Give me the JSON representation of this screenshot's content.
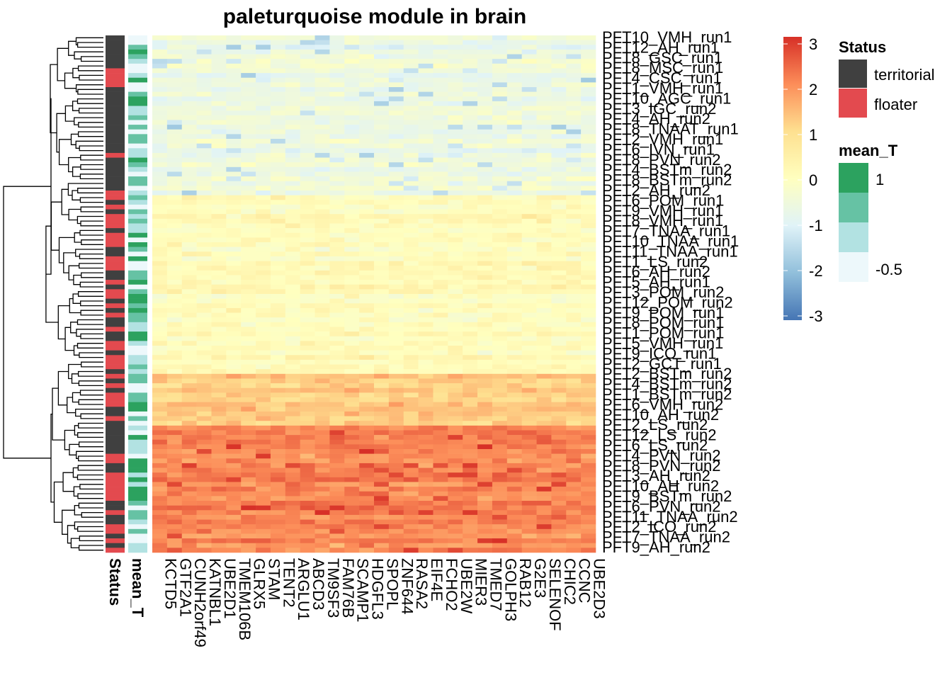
{
  "chart_data": {
    "type": "heatmap",
    "title": "paleturquoise module in brain",
    "columns": [
      "KCTD5",
      "GTF2A1",
      "CUNH2orf49",
      "KATNBL1",
      "UBE2D1",
      "TMEM106B",
      "GLRX5",
      "STAM",
      "TENT2",
      "ARGLU1",
      "ABCD3",
      "TM9SF3",
      "FAM76B",
      "SCAMP1",
      "HDGFL3",
      "SPOPL",
      "ZNF644",
      "RASA2",
      "EIF4E",
      "FCHO2",
      "UBE2W",
      "MIER3",
      "TMED7",
      "GOLPH3",
      "RAB12",
      "G2E3",
      "SELENOF",
      "CHIC2",
      "CCNC",
      "UBE2D3"
    ],
    "row_labels_visible": [
      "PFT10_VMH_run1",
      "PFT12_AH_run1",
      "PFT8_GSC_run1",
      "PFT8_MSC_run1",
      "PFT4_CSC_run1",
      "PFT1_VMH_run1",
      "PFT10_AGC_run1",
      "PFT3_IGC_run2",
      "PFT4_AH_run2",
      "PFT8_TNAAT_run1",
      "PFT2_VMH_run1",
      "PFT6_IVN_run1",
      "PFT8_PVN_run2",
      "PFT4_BSTm_run2",
      "PFT8_BSTm_run2",
      "PFT2_AH_run2",
      "PFT6_POM_run1",
      "PFT9_VMH_run1",
      "PFT8_VMH_run1",
      "PFT7_TNAA_run1",
      "PFT10_TNAA_run1",
      "PFT11_TNAA_run1",
      "PFT1_LS_run2",
      "PFT6_AH_run2",
      "PFT5_AH_run1",
      "PFT3_POM_run2",
      "PFT12_POM_run2",
      "PFT9_POM_run1",
      "PFT8_POM_run1",
      "PFT1_POM_run1",
      "PFT5_VMH_run1",
      "PFT9_ICO_run1",
      "PFT2_GCT_run1",
      "PFT2_BSTm_run2",
      "PFT4_BSTm_run2",
      "PFT1_BSTm_run2",
      "PFT6_VMH_run2",
      "PFT10_AH_run2",
      "PFT2_LS_run2",
      "PFT12_LS_run2",
      "PFT6_LS_run2",
      "PFT4_PVN_run2",
      "PFT8_PVN_run2",
      "PFT3_AH_run2",
      "PFT10_AH_run2",
      "PFT9_BSTm_run2",
      "PFT6_PVN_run2",
      "PFT11_TNAA_run2",
      "PFT2_ICO_run2",
      "PFT7_TNAA_run2",
      "PFT9_AH_run2"
    ],
    "n_rows": 110,
    "n_cols": 30,
    "row_groups": [
      {
        "level": -0.55,
        "rows": 34
      },
      {
        "level": 0.08,
        "rows": 38
      },
      {
        "level": 1.25,
        "rows": 11
      },
      {
        "level": 2.05,
        "rows": 27
      }
    ],
    "status_legend": {
      "title": "Status",
      "items": [
        {
          "label": "territorial",
          "color": "#404040"
        },
        {
          "label": "floater",
          "color": "#e34a4f"
        }
      ]
    },
    "mean_T_legend": {
      "title": "mean_T",
      "items": [
        {
          "label": "1",
          "color": "#2ca25f"
        },
        {
          "label": "",
          "color": "#66c2a4"
        },
        {
          "label": "",
          "color": "#b2e2e2"
        },
        {
          "label": "-0.5",
          "color": "#edf8fb"
        }
      ]
    },
    "color_scale": {
      "min": -3,
      "max": 3,
      "ticks": [
        "3",
        "2",
        "1",
        "0",
        "-1",
        "-2",
        "-3"
      ],
      "colors": [
        "#4575b4",
        "#91bfdb",
        "#e0f3f8",
        "#ffffbf",
        "#fee090",
        "#fc8d59",
        "#d73027"
      ]
    },
    "annotation_labels": [
      "Status",
      "mean_T"
    ],
    "palette": {
      "territorial": "#404040",
      "floater": "#e34a4f"
    }
  }
}
